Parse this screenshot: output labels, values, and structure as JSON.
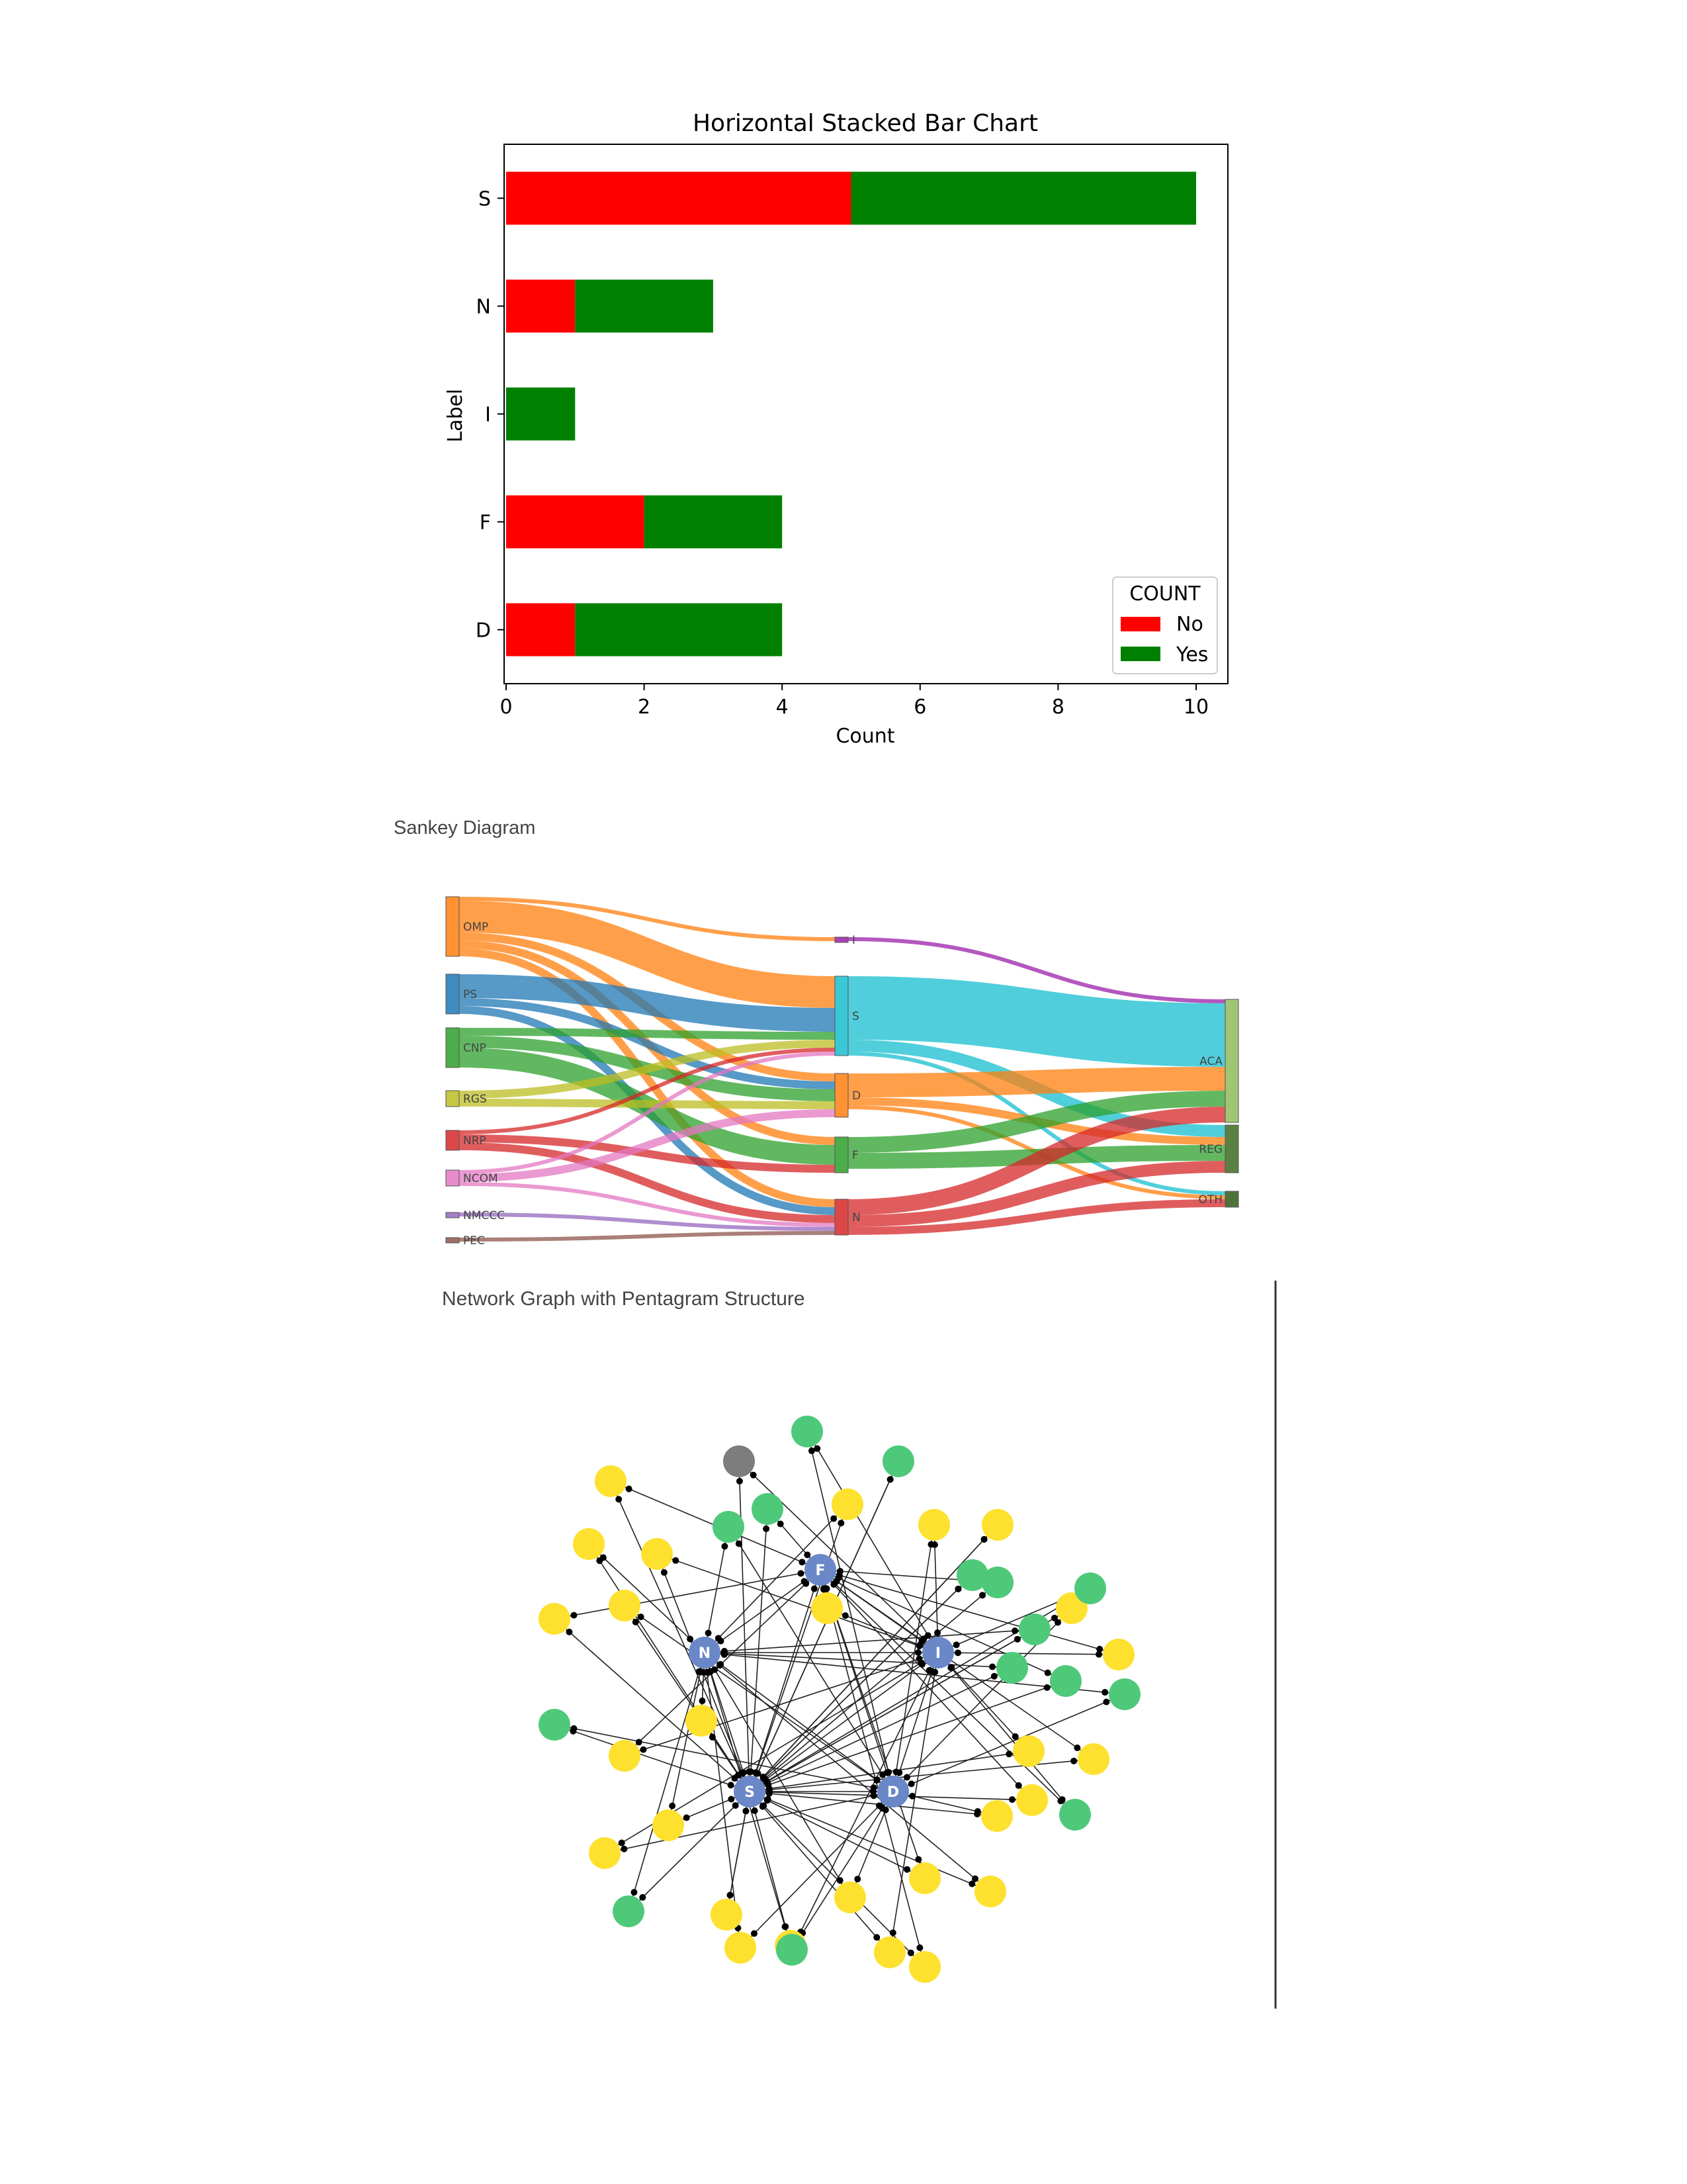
{
  "chart_data": [
    {
      "type": "bar",
      "orientation": "horizontal",
      "stacked": true,
      "title": "Horizontal Stacked Bar Chart",
      "xlabel": "Count",
      "ylabel": "Label",
      "categories": [
        "S",
        "N",
        "I",
        "F",
        "D"
      ],
      "series": [
        {
          "name": "No",
          "color": "#ff0000",
          "values": [
            5,
            1,
            0,
            2,
            1
          ]
        },
        {
          "name": "Yes",
          "color": "#008000",
          "values": [
            5,
            2,
            1,
            2,
            3
          ]
        }
      ],
      "xlim": [
        0,
        10.5
      ],
      "xticks": [
        "0",
        "2",
        "4",
        "6",
        "8",
        "10"
      ],
      "legend": {
        "title": "COUNT",
        "placement": "lower right"
      },
      "grid": false
    },
    {
      "type": "sankey",
      "title": "Sankey Diagram",
      "nodes": [
        {
          "label": "OMP",
          "color": "#ff7f0e"
        },
        {
          "label": "PS",
          "color": "#1f77b4"
        },
        {
          "label": "CNP",
          "color": "#2ca02c"
        },
        {
          "label": "RGS",
          "color": "#bcbd22"
        },
        {
          "label": "NRP",
          "color": "#d62728"
        },
        {
          "label": "NCOM",
          "color": "#e377c2"
        },
        {
          "label": "NMCCC",
          "color": "#9467bd"
        },
        {
          "label": "PEC",
          "color": "#8c564b"
        },
        {
          "label": "I",
          "color": "#9b1fa8"
        },
        {
          "label": "S",
          "color": "#17becf"
        },
        {
          "label": "D",
          "color": "#ff7f0e"
        },
        {
          "label": "F",
          "color": "#2ca02c"
        },
        {
          "label": "N",
          "color": "#d62728"
        },
        {
          "label": "ACA",
          "color": "#8fbc5a"
        },
        {
          "label": "REG",
          "color": "#3d6b21"
        },
        {
          "label": "OTH",
          "color": "#2f5a18"
        }
      ],
      "links": [
        {
          "source": "OMP",
          "target": "I",
          "value": 0.5
        },
        {
          "source": "OMP",
          "target": "S",
          "value": 4
        },
        {
          "source": "OMP",
          "target": "D",
          "value": 1
        },
        {
          "source": "OMP",
          "target": "F",
          "value": 1
        },
        {
          "source": "OMP",
          "target": "N",
          "value": 1
        },
        {
          "source": "PS",
          "target": "S",
          "value": 3
        },
        {
          "source": "PS",
          "target": "D",
          "value": 1
        },
        {
          "source": "PS",
          "target": "N",
          "value": 1
        },
        {
          "source": "CNP",
          "target": "S",
          "value": 1
        },
        {
          "source": "CNP",
          "target": "D",
          "value": 1.5
        },
        {
          "source": "CNP",
          "target": "F",
          "value": 2.5
        },
        {
          "source": "RGS",
          "target": "S",
          "value": 1
        },
        {
          "source": "RGS",
          "target": "D",
          "value": 1
        },
        {
          "source": "NRP",
          "target": "S",
          "value": 0.5
        },
        {
          "source": "NRP",
          "target": "F",
          "value": 1
        },
        {
          "source": "NRP",
          "target": "N",
          "value": 1
        },
        {
          "source": "NCOM",
          "target": "S",
          "value": 0.5
        },
        {
          "source": "NCOM",
          "target": "D",
          "value": 1
        },
        {
          "source": "NCOM",
          "target": "N",
          "value": 0.5
        },
        {
          "source": "NMCCC",
          "target": "N",
          "value": 0.5
        },
        {
          "source": "PEC",
          "target": "N",
          "value": 0.5
        },
        {
          "source": "I",
          "target": "ACA",
          "value": 0.5
        },
        {
          "source": "S",
          "target": "ACA",
          "value": 8
        },
        {
          "source": "S",
          "target": "REG",
          "value": 1.5
        },
        {
          "source": "S",
          "target": "OTH",
          "value": 0.5
        },
        {
          "source": "D",
          "target": "ACA",
          "value": 3
        },
        {
          "source": "D",
          "target": "REG",
          "value": 1
        },
        {
          "source": "D",
          "target": "OTH",
          "value": 0.5
        },
        {
          "source": "F",
          "target": "ACA",
          "value": 2
        },
        {
          "source": "F",
          "target": "REG",
          "value": 2
        },
        {
          "source": "N",
          "target": "ACA",
          "value": 2
        },
        {
          "source": "N",
          "target": "REG",
          "value": 1.5
        },
        {
          "source": "N",
          "target": "OTH",
          "value": 1
        }
      ]
    },
    {
      "type": "network",
      "title": "Network Graph with Pentagram Structure",
      "hubs": [
        "F",
        "N",
        "I",
        "S",
        "D"
      ],
      "leaf_counts": {
        "yellow": 27,
        "green": 15,
        "gray": 1
      }
    }
  ]
}
